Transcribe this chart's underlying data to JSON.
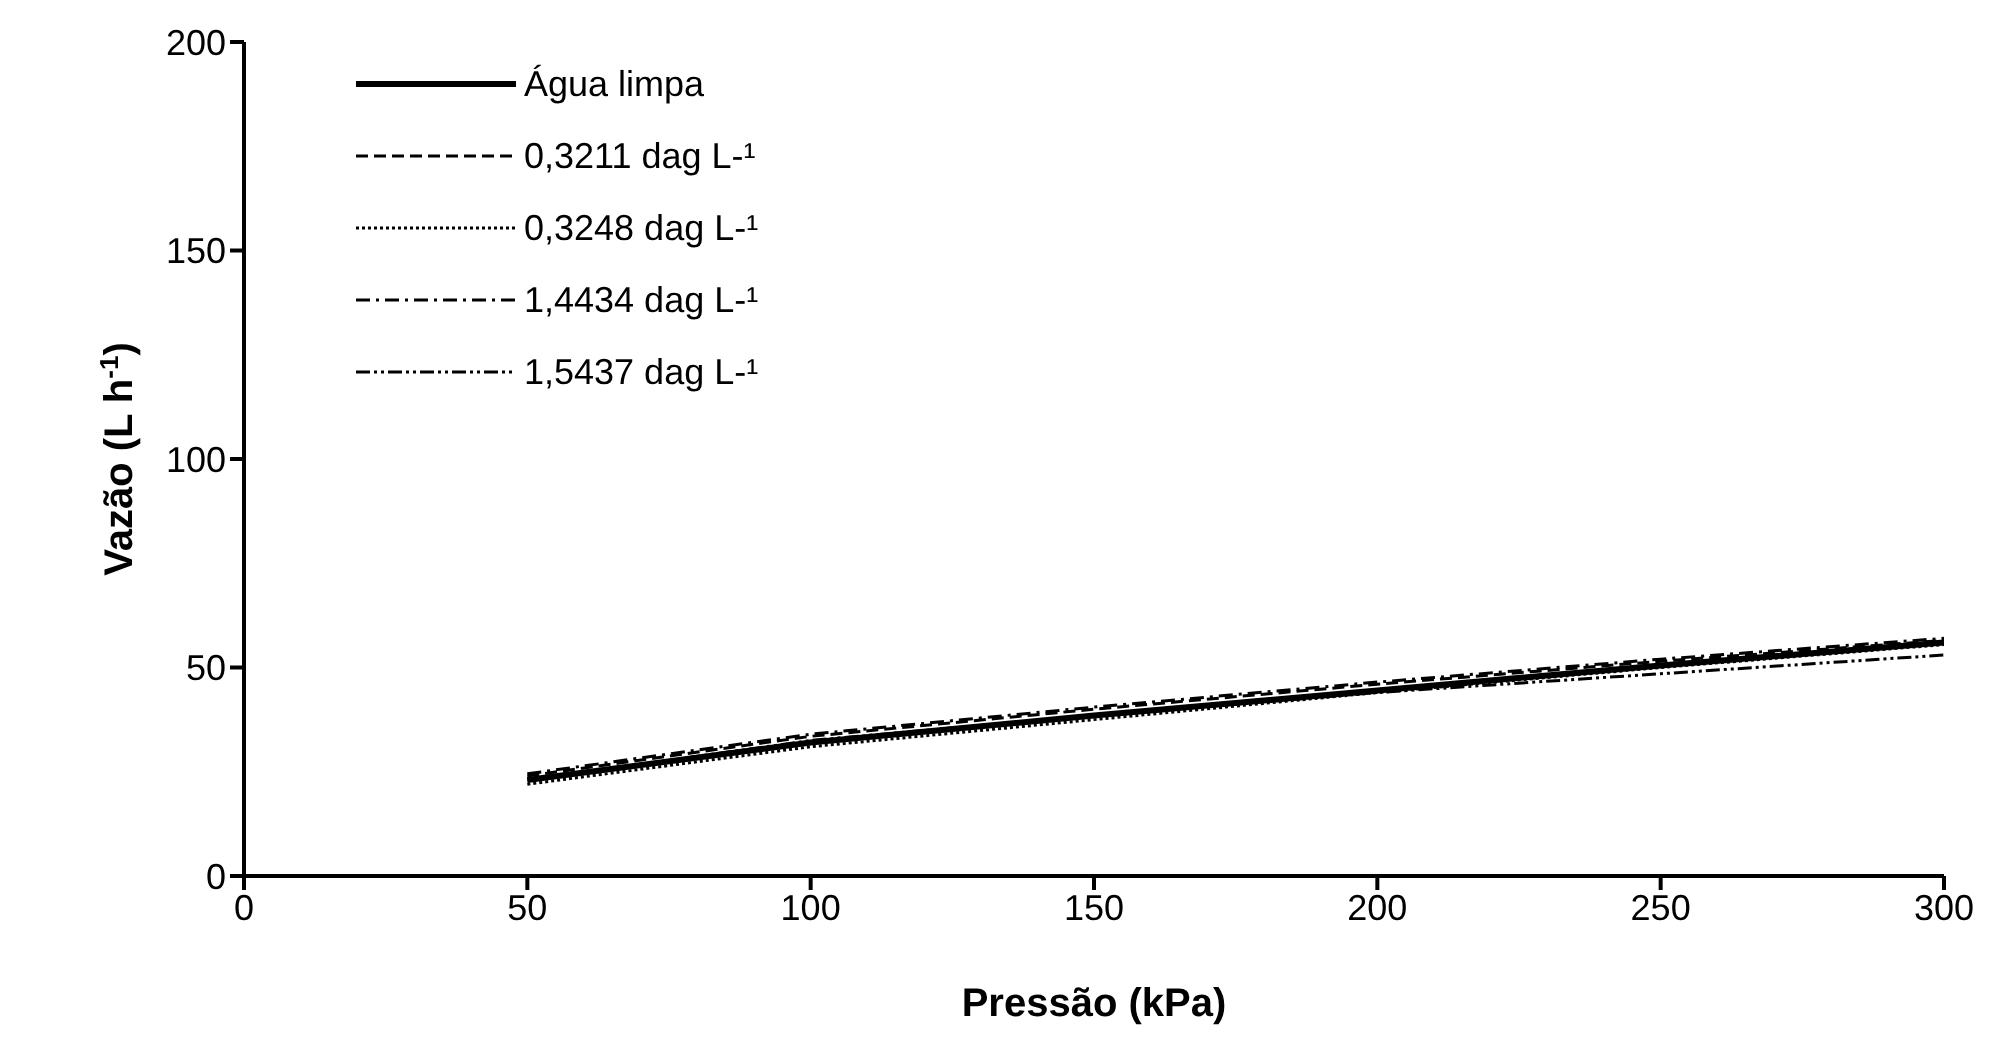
{
  "chart_data": {
    "type": "line",
    "xlabel": "Pressão (kPa)",
    "ylabel": "Vazão (L h$^{-1}$)",
    "x": [
      50,
      100,
      150,
      200,
      250,
      300
    ],
    "series": [
      {
        "name": "Água limpa",
        "color": "#000000",
        "line_style": "solid",
        "values": [
          23,
          32,
          38.5,
          44.5,
          50.5,
          56
        ]
      },
      {
        "name": "0,3211 dag L-¹",
        "color": "#000000",
        "line_style": "dashed",
        "values": [
          24,
          33.5,
          40,
          46,
          51.5,
          56.5
        ]
      },
      {
        "name": "0,3248 dag L-¹",
        "color": "#000000",
        "line_style": "dotted",
        "values": [
          22,
          31,
          37.5,
          44,
          50,
          55.5
        ]
      },
      {
        "name": "1,4434 dag L-¹",
        "color": "#000000",
        "line_style": "dashdot",
        "values": [
          24.5,
          34,
          40.5,
          46.5,
          52,
          57
        ]
      },
      {
        "name": "1,5437 dag L-¹",
        "color": "#000000",
        "line_style": "dashdotdot",
        "values": [
          23,
          32.5,
          38.5,
          44,
          48.5,
          53
        ]
      }
    ],
    "xlim": [
      0,
      300
    ],
    "xticks": [
      0,
      50,
      100,
      150,
      200,
      250,
      300
    ],
    "ylim": [
      0,
      200
    ],
    "yticks": [
      0,
      50,
      100,
      150,
      200
    ],
    "grid": false,
    "legend": "top left",
    "marker": "none"
  }
}
